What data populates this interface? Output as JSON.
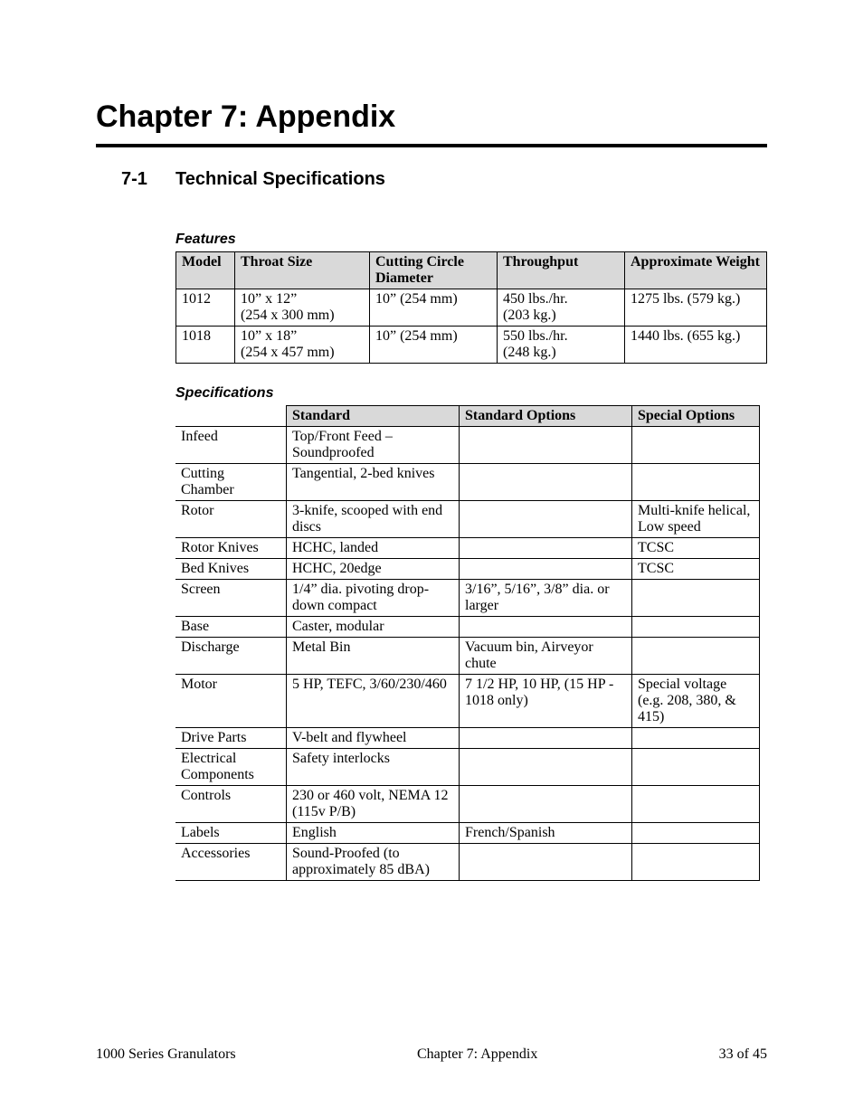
{
  "chapter": {
    "title": "Chapter 7: Appendix"
  },
  "section": {
    "num": "7-1",
    "title": "Technical Specifications"
  },
  "features": {
    "heading": "Features",
    "headers": [
      "Model",
      "Throat Size",
      "Cutting Circle Diameter",
      "Throughput",
      "Approximate Weight"
    ],
    "rows": [
      {
        "model": "1012",
        "throat": "10” x 12”\n(254 x 300 mm)",
        "diameter": "10” (254 mm)",
        "throughput": "450 lbs./hr.\n(203 kg.)",
        "weight": "1275 lbs. (579 kg.)"
      },
      {
        "model": "1018",
        "throat": "10” x 18”\n(254 x 457 mm)",
        "diameter": "10” (254 mm)",
        "throughput": "550 lbs./hr.\n(248 kg.)",
        "weight": "1440 lbs. (655 kg.)"
      }
    ]
  },
  "specs": {
    "heading": "Specifications",
    "headers": [
      "",
      "Standard",
      "Standard Options",
      "Special Options"
    ],
    "rows": [
      {
        "label": "Infeed",
        "std": "Top/Front Feed – Soundproofed",
        "opt": "",
        "spec": ""
      },
      {
        "label": "Cutting Chamber",
        "std": "Tangential, 2-bed knives",
        "opt": "",
        "spec": ""
      },
      {
        "label": "Rotor",
        "std": "3-knife, scooped with end discs",
        "opt": "",
        "spec": "Multi-knife helical, Low speed"
      },
      {
        "label": "Rotor Knives",
        "std": "HCHC, landed",
        "opt": "",
        "spec": "TCSC"
      },
      {
        "label": "Bed Knives",
        "std": "HCHC, 20edge",
        "opt": "",
        "spec": "TCSC"
      },
      {
        "label": "Screen",
        "std": "1/4” dia. pivoting drop-down compact",
        "opt": "3/16”, 5/16”, 3/8” dia. or larger",
        "spec": ""
      },
      {
        "label": "Base",
        "std": "Caster, modular",
        "opt": "",
        "spec": ""
      },
      {
        "label": "Discharge",
        "std": "Metal Bin",
        "opt": "Vacuum bin, Airveyor chute",
        "spec": ""
      },
      {
        "label": "Motor",
        "std": "5 HP, TEFC, 3/60/230/460",
        "opt": "7 1/2 HP, 10 HP, (15 HP - 1018 only)",
        "spec": "Special voltage (e.g. 208, 380, & 415)"
      },
      {
        "label": "Drive Parts",
        "std": "V-belt and flywheel",
        "opt": "",
        "spec": ""
      },
      {
        "label": "Electrical Components",
        "std": "Safety interlocks",
        "opt": "",
        "spec": ""
      },
      {
        "label": "Controls",
        "std": "230 or 460 volt, NEMA 12 (115v P/B)",
        "opt": "",
        "spec": ""
      },
      {
        "label": "Labels",
        "std": "English",
        "opt": "French/Spanish",
        "spec": ""
      },
      {
        "label": "Accessories",
        "std": "Sound-Proofed (to approximately 85 dBA)",
        "opt": "",
        "spec": ""
      }
    ]
  },
  "footer": {
    "left": "1000 Series Granulators",
    "center": "Chapter 7: Appendix",
    "right": "33 of 45"
  }
}
